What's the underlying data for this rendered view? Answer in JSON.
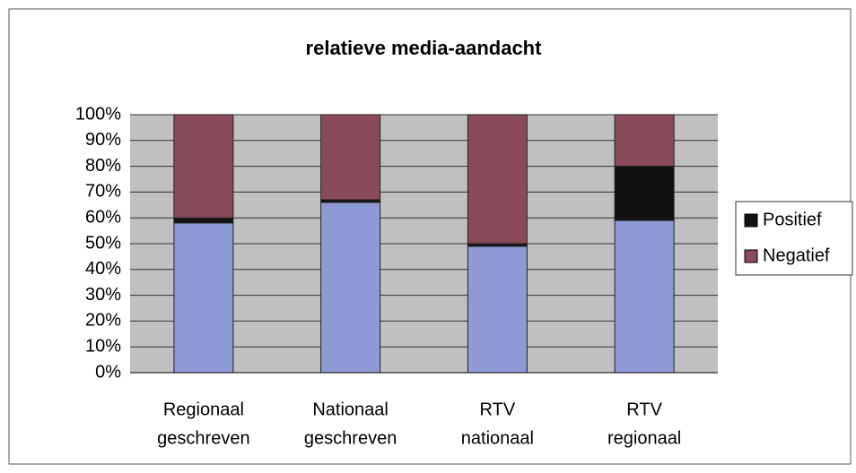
{
  "chart_data": {
    "type": "stacked_bar",
    "title": "relatieve media-aandacht",
    "categories": [
      [
        "Regionaal",
        "geschreven"
      ],
      [
        "Nationaal",
        "geschreven"
      ],
      [
        "RTV",
        "nationaal"
      ],
      [
        "RTV",
        "regionaal"
      ]
    ],
    "series": [
      {
        "color": "#8e9ad6",
        "values": [
          58,
          66,
          49,
          59
        ]
      },
      {
        "name": "Positief",
        "color": "#111111",
        "values": [
          2,
          1,
          1,
          21
        ]
      },
      {
        "name": "Negatief",
        "color": "#8b4a5a",
        "values": [
          40,
          33,
          50,
          20
        ]
      }
    ],
    "ylim": [
      0,
      100
    ],
    "yticks": [
      {
        "value": 0,
        "label": "0%"
      },
      {
        "value": 10,
        "label": "10%"
      },
      {
        "value": 20,
        "label": "20%"
      },
      {
        "value": 30,
        "label": "30%"
      },
      {
        "value": 40,
        "label": "40%"
      },
      {
        "value": 50,
        "label": "50%"
      },
      {
        "value": 60,
        "label": "60%"
      },
      {
        "value": 70,
        "label": "70%"
      },
      {
        "value": 80,
        "label": "80%"
      },
      {
        "value": 90,
        "label": "90%"
      },
      {
        "value": 100,
        "label": "100%"
      }
    ],
    "grid": true,
    "legend": "right"
  }
}
